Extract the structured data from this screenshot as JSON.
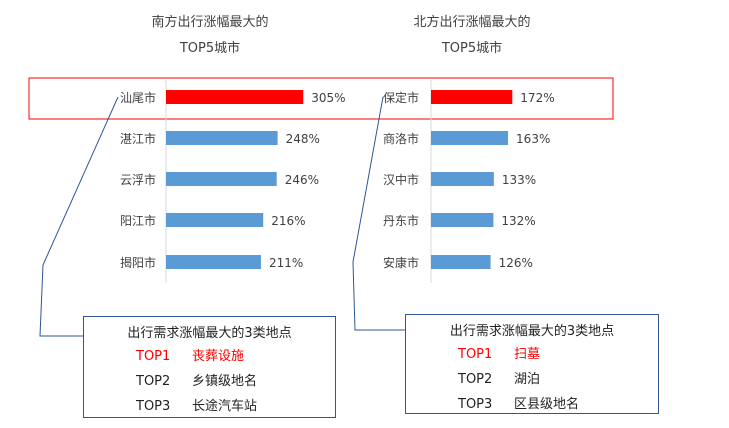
{
  "chart_data": [
    {
      "type": "bar",
      "title": "南方出行涨幅最大的 TOP5城市",
      "title_lines": [
        "南方出行涨幅最大的",
        "TOP5城市"
      ],
      "categories": [
        "汕尾市",
        "湛江市",
        "云浮市",
        "阳江市",
        "揭阳市"
      ],
      "values": [
        305,
        248,
        246,
        216,
        211
      ],
      "value_labels": [
        "305%",
        "248%",
        "246%",
        "216%",
        "211%"
      ],
      "unit": "%",
      "orientation": "horizontal",
      "xlim": [
        0,
        500
      ],
      "grid": false,
      "highlight_index": 0
    },
    {
      "type": "bar",
      "title": "北方出行涨幅最大的 TOP5城市",
      "title_lines": [
        "北方出行涨幅最大的",
        "TOP5城市"
      ],
      "categories": [
        "保定市",
        "商洛市",
        "汉中市",
        "丹东市",
        "安康市"
      ],
      "values": [
        172,
        163,
        133,
        132,
        126
      ],
      "value_labels": [
        "172%",
        "163%",
        "133%",
        "132%",
        "126%"
      ],
      "unit": "%",
      "orientation": "horizontal",
      "xlim": [
        0,
        275
      ],
      "grid": false,
      "highlight_index": 0
    }
  ],
  "colors": {
    "bar": "#5b9bd5",
    "highlight": "#ff0000",
    "callout": "#2f5597",
    "text": "#404040"
  },
  "south_box": {
    "title": "出行需求涨幅最大的3类地点",
    "items": [
      {
        "rank": "TOP1",
        "place": "丧葬设施",
        "highlight": true
      },
      {
        "rank": "TOP2",
        "place": "乡镇级地名",
        "highlight": false
      },
      {
        "rank": "TOP3",
        "place": "长途汽车站",
        "highlight": false
      }
    ]
  },
  "north_box": {
    "title": "出行需求涨幅最大的3类地点",
    "items": [
      {
        "rank": "TOP1",
        "place": "扫墓",
        "highlight": true
      },
      {
        "rank": "TOP2",
        "place": "湖泊",
        "highlight": false
      },
      {
        "rank": "TOP3",
        "place": "区县级地名",
        "highlight": false
      }
    ]
  }
}
